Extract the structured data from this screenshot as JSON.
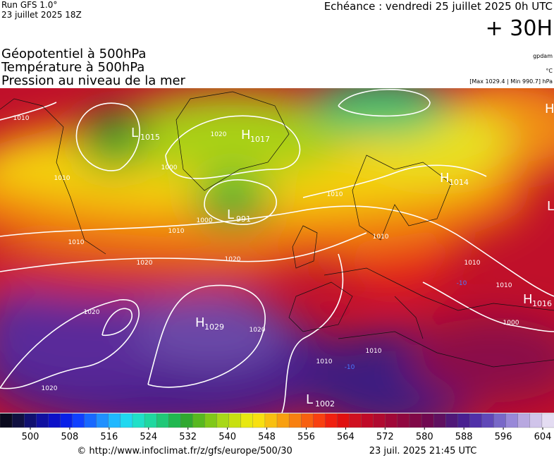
{
  "header": {
    "run": "Run GFS 1.0°",
    "run_date": "23 juillet 2025 18Z",
    "valid": "Echéance : vendredi 25 juillet 2025 0h UTC",
    "lead": "+ 30H"
  },
  "fields": [
    "Géopotentiel à 500hPa",
    "Température à 500hPa",
    "Pression au niveau de la mer"
  ],
  "units": [
    "gpdam",
    "°C",
    "[Max 1029.4 | Min 990.7] hPa"
  ],
  "centers": [
    {
      "letter": "L",
      "value": 1015
    },
    {
      "letter": "H",
      "value": 1017
    },
    {
      "letter": "L",
      "value": 991
    },
    {
      "letter": "H",
      "value": 1014
    },
    {
      "letter": "H",
      "value": 1029
    },
    {
      "letter": "H",
      "value": 1016
    },
    {
      "letter": "L",
      "value": 1002
    },
    {
      "letter": "H"
    },
    {
      "letter": "L"
    }
  ],
  "isobar_labels": [
    1010,
    1010,
    1000,
    1020,
    1000,
    1010,
    1010,
    1010,
    1020,
    1020,
    1020,
    1020,
    1010,
    1010,
    1010,
    1000,
    1010,
    1010,
    1020
  ],
  "temperature_labels": [
    -10,
    -10
  ],
  "colorbar": {
    "ticks": [
      500,
      508,
      516,
      524,
      532,
      540,
      548,
      556,
      564,
      572,
      580,
      588,
      596,
      604
    ]
  },
  "footer": {
    "source": "© http://www.infoclimat.fr/z/gfs/europe/500/30",
    "generated": "23 juil. 2025 21:45 UTC"
  }
}
